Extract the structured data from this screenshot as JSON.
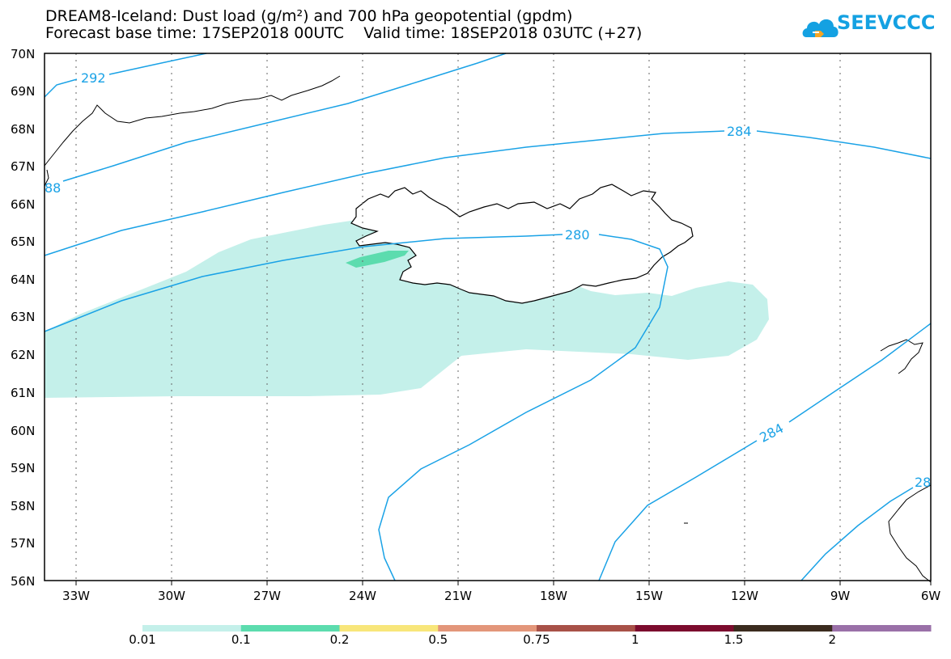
{
  "title": {
    "line1": "DREAM8-Iceland: Dust load (g/m²) and 700 hPa geopotential (gpdm)",
    "line2": "Forecast base time: 17SEP2018 00UTC    Valid time: 18SEP2018 03UTC (+27)"
  },
  "logo": {
    "text": "SEEVCCC",
    "icon": "cloud-icon",
    "color": "#14a1e2"
  },
  "axes": {
    "lat_labels": [
      "70N",
      "69N",
      "68N",
      "67N",
      "66N",
      "65N",
      "64N",
      "63N",
      "62N",
      "61N",
      "60N",
      "59N",
      "58N",
      "57N",
      "56N"
    ],
    "lon_labels": [
      "33W",
      "30W",
      "27W",
      "24W",
      "21W",
      "18W",
      "15W",
      "12W",
      "9W",
      "6W"
    ]
  },
  "contours": {
    "labels": [
      "292",
      "88",
      "284",
      "280",
      "284",
      "28"
    ],
    "line_color": "#1aa2e6"
  },
  "dust": {
    "light_color": "#c4f0ea",
    "medium_color": "#5cdcae"
  },
  "colorbar": {
    "labels": [
      "0.01",
      "0.1",
      "0.2",
      "0.5",
      "0.75",
      "1",
      "1.5",
      "2"
    ],
    "colors": [
      "#c4f0ea",
      "#5cdcae",
      "#f8e67a",
      "#e3967a",
      "#a85148",
      "#7c0c2e",
      "#3b2b1e",
      "#9a70a8"
    ]
  }
}
